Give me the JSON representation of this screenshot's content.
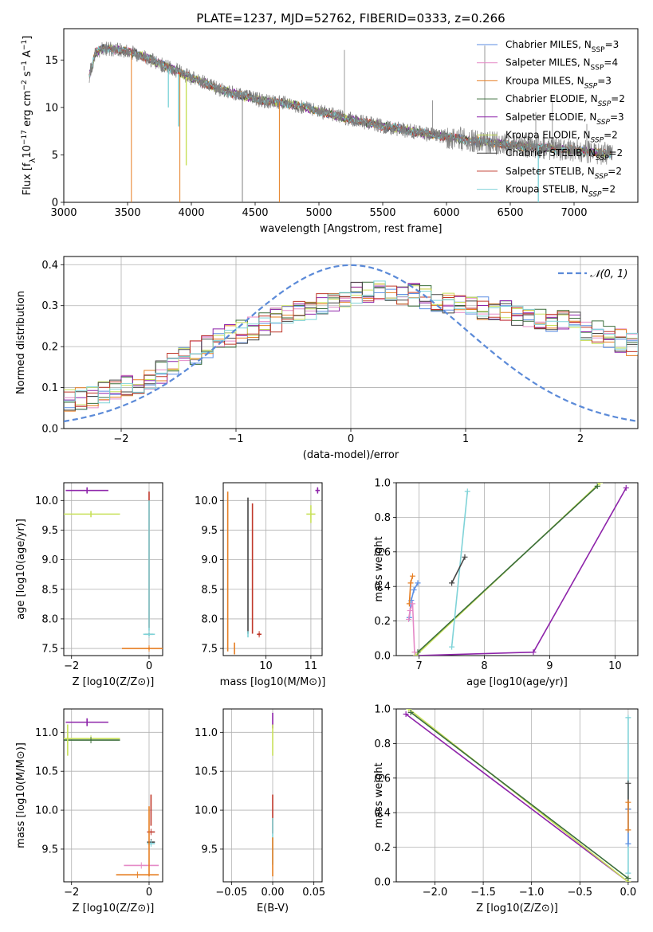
{
  "colors": {
    "Chabrier MILES": "#5b8ee3",
    "Salpeter MILES": "#e58ac7",
    "Kroupa MILES": "#e67e22",
    "Chabrier ELODIE": "#3b6e3b",
    "Salpeter ELODIE": "#8e24aa",
    "Kroupa ELODIE": "#c8e05a",
    "Chabrier STELIB": "#444444",
    "Salpeter STELIB": "#c0392b",
    "Kroupa STELIB": "#7fd3d8",
    "data": "#7f7f7f",
    "grid": "#b0b0b0",
    "normal_curve": "#5b8ad8"
  },
  "chart_data": [
    {
      "id": "spectrum",
      "type": "line",
      "title": "PLATE=1237, MJD=52762, FIBERID=0333, z=0.266",
      "xlabel": "wavelength [Angstrom, rest frame]",
      "ylabel_parts": [
        "Flux [f",
        "λ",
        "10",
        "−17",
        " erg cm",
        "−2",
        " s",
        "−1",
        " A",
        "−1",
        "]"
      ],
      "xlim": [
        3000,
        7500
      ],
      "ylim": [
        0,
        18.3
      ],
      "xticks": [
        3000,
        3500,
        4000,
        4500,
        5000,
        5500,
        6000,
        6500,
        7000
      ],
      "yticks": [
        0,
        5,
        10,
        15
      ],
      "grid": false,
      "legend_position": "top-right",
      "continuum": {
        "x": [
          3200,
          3250,
          3300,
          3400,
          3500,
          3600,
          3700,
          3800,
          3900,
          4000,
          4100,
          4200,
          4300,
          4400,
          4500,
          4600,
          4700,
          4800,
          4900,
          5000,
          5200,
          5400,
          5600,
          5800,
          6000,
          6200,
          6400,
          6600,
          6800,
          7000,
          7200,
          7300
        ],
        "y": [
          13.4,
          15.8,
          16.2,
          16.1,
          15.9,
          15.5,
          14.9,
          14.3,
          13.8,
          13.1,
          12.6,
          12.0,
          11.6,
          11.2,
          10.9,
          10.6,
          10.5,
          10.3,
          10.0,
          9.6,
          8.9,
          8.3,
          7.8,
          7.3,
          6.9,
          6.5,
          6.2,
          5.9,
          5.7,
          5.5,
          5.2,
          5.0
        ]
      },
      "model_series": [
        {
          "name": "Chabrier MILES",
          "nssp": "3"
        },
        {
          "name": "Salpeter MILES",
          "nssp": "4"
        },
        {
          "name": "Kroupa MILES",
          "nssp": "3"
        },
        {
          "name": "Chabrier ELODIE",
          "nssp": "2"
        },
        {
          "name": "Salpeter ELODIE",
          "nssp": "3"
        },
        {
          "name": "Kroupa ELODIE",
          "nssp": "2"
        },
        {
          "name": "Chabrier STELIB",
          "nssp": "2"
        },
        {
          "name": "Salpeter STELIB",
          "nssp": "2"
        },
        {
          "name": "Kroupa STELIB",
          "nssp": "2"
        }
      ],
      "dropouts": [
        {
          "x": 3530,
          "series": "Kroupa MILES"
        },
        {
          "x": 3910,
          "series": "Kroupa MILES"
        },
        {
          "x": 4690,
          "series": "Kroupa MILES"
        },
        {
          "x": 4400,
          "series": "data"
        }
      ]
    },
    {
      "id": "residuals",
      "type": "histogram",
      "xlabel": "(data-model)/error",
      "ylabel": "Normed distribution",
      "xlim": [
        -2.5,
        2.5
      ],
      "ylim": [
        0,
        0.42
      ],
      "xticks": [
        -2,
        -1,
        0,
        1,
        2
      ],
      "yticks": [
        0.0,
        0.1,
        0.2,
        0.3,
        0.4
      ],
      "grid": true,
      "legend_position": "top-right",
      "legend_label": "𝒩(0, 1)",
      "bin_width": 0.1,
      "envelope": [
        0.07,
        0.075,
        0.08,
        0.085,
        0.09,
        0.1,
        0.11,
        0.125,
        0.14,
        0.155,
        0.17,
        0.185,
        0.2,
        0.215,
        0.225,
        0.235,
        0.245,
        0.255,
        0.265,
        0.275,
        0.285,
        0.295,
        0.305,
        0.315,
        0.325,
        0.33,
        0.335,
        0.34,
        0.335,
        0.33,
        0.325,
        0.32,
        0.315,
        0.31,
        0.305,
        0.3,
        0.295,
        0.29,
        0.285,
        0.28,
        0.275,
        0.27,
        0.265,
        0.26,
        0.255,
        0.245,
        0.235,
        0.225,
        0.215,
        0.205,
        0.195,
        0.185,
        0.175,
        0.165,
        0.155,
        0.145,
        0.135,
        0.125,
        0.115,
        0.105,
        0.095,
        0.09,
        0.085,
        0.08,
        0.075,
        0.07,
        0.065,
        0.06,
        0.055,
        0.05
      ]
    },
    {
      "id": "age-vs-z",
      "type": "errorbar",
      "xlabel": "Z [log10(Z/Z⊙)]",
      "ylabel": "age  [log10(age/yr)]",
      "xlim": [
        -2.2,
        0.35
      ],
      "ylim": [
        7.38,
        10.3
      ],
      "xticks": [
        -2,
        0
      ],
      "yticks": [
        7.5,
        8.0,
        8.5,
        9.0,
        9.5,
        10.0
      ],
      "grid": true,
      "points": [
        {
          "series": "Salpeter ELODIE",
          "x": -1.6,
          "y": 10.17,
          "xerr": 0.55,
          "yerr": 0.05
        },
        {
          "series": "Kroupa ELODIE",
          "x": -1.5,
          "y": 9.77,
          "xerr": 0.75,
          "yerr": 0.05
        },
        {
          "series": "Chabrier STELIB",
          "x": 0.0,
          "y": 7.74,
          "xerr": 0.1,
          "yerr": 0.02
        },
        {
          "series": "Kroupa STELIB",
          "x": 0.0,
          "y": 7.74,
          "xerr": 0.15,
          "yerr": 0.02
        },
        {
          "series": "Kroupa MILES",
          "x": 0.0,
          "y": 7.5,
          "xerr": 0.7,
          "yerr": 0.02
        },
        {
          "series": "Salpeter STELIB",
          "x": 0.0,
          "y": 9.0,
          "xerr": 0.0,
          "yerr": 1.15
        },
        {
          "series": "Kroupa STELIB",
          "x": 0.0,
          "y": 8.9,
          "xerr": 0.0,
          "yerr": 1.1
        }
      ]
    },
    {
      "id": "age-vs-mass",
      "type": "errorbar",
      "xlabel": "mass [log10(M/M⊙)]",
      "ylabel": "",
      "xlim": [
        9.05,
        11.25
      ],
      "ylim": [
        7.38,
        10.3
      ],
      "xticks": [
        10,
        11
      ],
      "yticks": [
        7.5,
        8.0,
        8.5,
        9.0,
        9.5,
        10.0
      ],
      "grid": true,
      "points": [
        {
          "series": "Salpeter ELODIE",
          "x": 11.15,
          "y": 10.17,
          "xerr": 0.05,
          "yerr": 0.05
        },
        {
          "series": "Kroupa ELODIE",
          "x": 11.0,
          "y": 9.77,
          "xerr": 0.1,
          "yerr": 0.15
        },
        {
          "series": "Kroupa MILES",
          "x": 9.15,
          "y": 8.8,
          "xerr": 0.0,
          "yerr": 1.35
        },
        {
          "series": "Kroupa MILES",
          "x": 9.3,
          "y": 7.5,
          "xerr": 0.0,
          "yerr": 0.1
        },
        {
          "series": "Chabrier STELIB",
          "x": 9.6,
          "y": 8.9,
          "xerr": 0.0,
          "yerr": 1.15
        },
        {
          "series": "Kroupa STELIB",
          "x": 9.6,
          "y": 7.74,
          "xerr": 0.0,
          "yerr": 0.05
        },
        {
          "series": "Salpeter STELIB",
          "x": 9.7,
          "y": 8.85,
          "xerr": 0.0,
          "yerr": 1.1
        },
        {
          "series": "Salpeter STELIB",
          "x": 9.85,
          "y": 7.74,
          "xerr": 0.05,
          "yerr": 0.02
        }
      ]
    },
    {
      "id": "weight-vs-age",
      "type": "line",
      "xlabel": "age  [log10(age/yr)]",
      "ylabel": "mass weight",
      "xlim": [
        6.65,
        10.35
      ],
      "ylim": [
        0,
        1.0
      ],
      "xticks": [
        7,
        8,
        9,
        10
      ],
      "yticks": [
        0.0,
        0.2,
        0.4,
        0.6,
        0.8,
        1.0
      ],
      "grid": true,
      "series": [
        {
          "name": "Salpeter ELODIE",
          "x": [
            6.95,
            8.75,
            10.17
          ],
          "y": [
            0.0,
            0.02,
            0.97
          ]
        },
        {
          "name": "Kroupa ELODIE",
          "x": [
            6.95,
            9.77
          ],
          "y": [
            0.0,
            1.0
          ]
        },
        {
          "name": "Chabrier ELODIE",
          "x": [
            6.98,
            9.73
          ],
          "y": [
            0.02,
            0.98
          ]
        },
        {
          "name": "Kroupa STELIB",
          "x": [
            7.5,
            7.74
          ],
          "y": [
            0.05,
            0.95
          ]
        },
        {
          "name": "Chabrier MILES",
          "x": [
            6.85,
            6.88,
            6.92,
            6.98
          ],
          "y": [
            0.22,
            0.32,
            0.38,
            0.42
          ]
        },
        {
          "name": "Kroupa MILES",
          "x": [
            6.85,
            6.87,
            6.9
          ],
          "y": [
            0.3,
            0.42,
            0.46
          ]
        },
        {
          "name": "Salpeter MILES",
          "x": [
            6.84,
            6.86,
            6.9,
            6.93
          ],
          "y": [
            0.21,
            0.26,
            0.3,
            0.02
          ]
        },
        {
          "name": "Chabrier STELIB",
          "x": [
            7.5,
            7.7
          ],
          "y": [
            0.42,
            0.57
          ]
        }
      ]
    },
    {
      "id": "mass-vs-z",
      "type": "errorbar",
      "xlabel": "Z [log10(Z/Z⊙)]",
      "ylabel": "mass [log10(M/M⊙)]",
      "xlim": [
        -2.2,
        0.35
      ],
      "ylim": [
        9.08,
        11.3
      ],
      "xticks": [
        -2,
        0
      ],
      "yticks": [
        9.5,
        10.0,
        10.5,
        11.0
      ],
      "grid": true,
      "points": [
        {
          "series": "Salpeter ELODIE",
          "x": -1.6,
          "y": 11.13,
          "xerr": 0.55,
          "yerr": 0.05
        },
        {
          "series": "Kroupa ELODIE",
          "x": -1.5,
          "y": 10.92,
          "xerr": 0.75,
          "yerr": 0.0
        },
        {
          "series": "Chabrier ELODIE",
          "x": -1.5,
          "y": 10.9,
          "xerr": 0.75,
          "yerr": 0.0
        },
        {
          "series": "Kroupa ELODIE",
          "x": -2.1,
          "y": 10.9,
          "xerr": 0.0,
          "yerr": 0.2
        },
        {
          "series": "Salpeter STELIB",
          "x": 0.05,
          "y": 10.0,
          "xerr": 0.0,
          "yerr": 0.2
        },
        {
          "series": "Salpeter STELIB",
          "x": 0.05,
          "y": 9.72,
          "xerr": 0.1,
          "yerr": 0.0
        },
        {
          "series": "Chabrier STELIB",
          "x": 0.05,
          "y": 9.59,
          "xerr": 0.1,
          "yerr": 0.0
        },
        {
          "series": "Kroupa STELIB",
          "x": 0.05,
          "y": 9.57,
          "xerr": 0.1,
          "yerr": 0.0
        },
        {
          "series": "Salpeter MILES",
          "x": -0.2,
          "y": 9.29,
          "xerr": 0.45,
          "yerr": 0.0
        },
        {
          "series": "Kroupa MILES",
          "x": -0.3,
          "y": 9.17,
          "xerr": 0.55,
          "yerr": 0.0
        },
        {
          "series": "Kroupa MILES",
          "x": 0.0,
          "y": 9.6,
          "xerr": 0.0,
          "yerr": 0.45
        }
      ]
    },
    {
      "id": "mass-vs-ebv",
      "type": "errorbar",
      "xlabel": "E(B-V)",
      "ylabel": "",
      "xlim": [
        -0.06,
        0.06
      ],
      "ylim": [
        9.08,
        11.3
      ],
      "xticks": [
        -0.05,
        0.0,
        0.05
      ],
      "xtick_labels": [
        "−0.05",
        "0.00",
        "0.05"
      ],
      "yticks": [
        9.5,
        10.0,
        10.5,
        11.0
      ],
      "grid": true,
      "points": [
        {
          "series": "Salpeter ELODIE",
          "x": 0.0,
          "y": 11.15,
          "xerr": 0.0,
          "yerr": 0.1
        },
        {
          "series": "Kroupa ELODIE",
          "x": 0.0,
          "y": 10.9,
          "xerr": 0.0,
          "yerr": 0.2
        },
        {
          "series": "Salpeter STELIB",
          "x": 0.0,
          "y": 9.95,
          "xerr": 0.0,
          "yerr": 0.25
        },
        {
          "series": "Kroupa STELIB",
          "x": 0.0,
          "y": 9.6,
          "xerr": 0.0,
          "yerr": 0.3
        },
        {
          "series": "Kroupa MILES",
          "x": 0.0,
          "y": 9.4,
          "xerr": 0.0,
          "yerr": 0.25
        }
      ]
    },
    {
      "id": "weight-vs-z",
      "type": "line",
      "xlabel": "Z [log10(Z/Z⊙)]",
      "ylabel": "mass weight",
      "xlim": [
        -2.4,
        0.1
      ],
      "ylim": [
        0,
        1.0
      ],
      "xticks": [
        -2.0,
        -1.5,
        -1.0,
        -0.5,
        0.0
      ],
      "xtick_labels": [
        "−2.0",
        "−1.5",
        "−1.0",
        "−0.5",
        "0.0"
      ],
      "yticks": [
        0.0,
        0.2,
        0.4,
        0.6,
        0.8,
        1.0
      ],
      "grid": true,
      "series": [
        {
          "name": "Salpeter ELODIE",
          "x": [
            -2.3,
            0.0
          ],
          "y": [
            0.97,
            0.0
          ]
        },
        {
          "name": "Kroupa ELODIE",
          "x": [
            -2.27,
            0.0
          ],
          "y": [
            1.0,
            0.0
          ]
        },
        {
          "name": "Chabrier ELODIE",
          "x": [
            -2.25,
            0.0
          ],
          "y": [
            0.98,
            0.02
          ]
        },
        {
          "name": "Kroupa STELIB",
          "x": [
            0.0,
            0.0
          ],
          "y": [
            0.05,
            0.95
          ]
        },
        {
          "name": "Chabrier STELIB",
          "x": [
            0.0,
            0.0
          ],
          "y": [
            0.42,
            0.57
          ]
        },
        {
          "name": "Chabrier MILES",
          "x": [
            0.0,
            0.0
          ],
          "y": [
            0.22,
            0.42
          ]
        },
        {
          "name": "Kroupa MILES",
          "x": [
            0.0,
            0.0
          ],
          "y": [
            0.3,
            0.46
          ]
        }
      ]
    }
  ]
}
